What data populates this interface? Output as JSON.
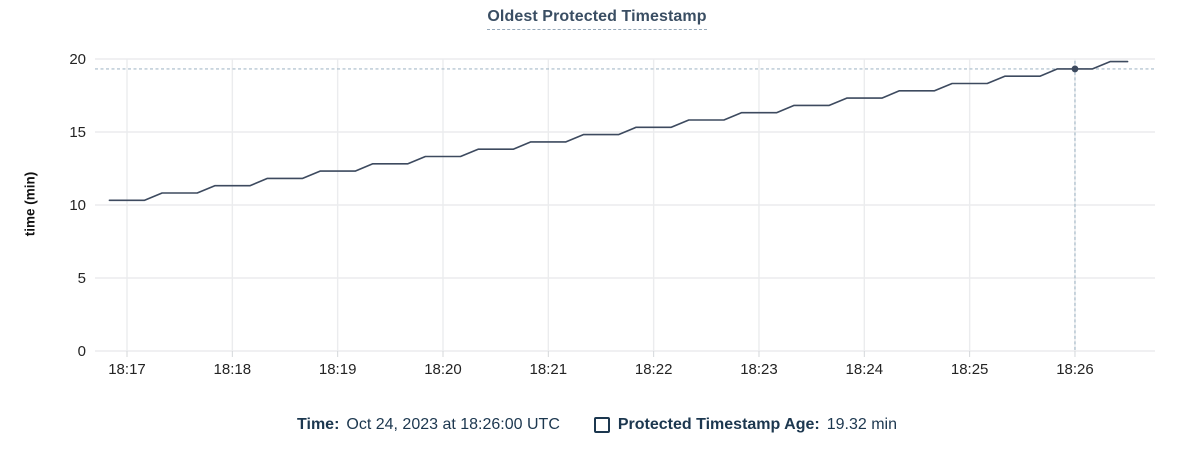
{
  "title": {
    "text": "Oldest Protected Timestamp"
  },
  "legend": {
    "time_label": "Time:",
    "time_value": "Oct 24, 2023 at 18:26:00 UTC",
    "series_label": "Protected Timestamp Age:",
    "series_value": "19.32 min"
  },
  "colors": {
    "title": "#3a4e63",
    "line": "#3d4a5f",
    "dot": "#3d4a5f",
    "crosshair": "#a7bbc9",
    "gridline": "#ebecee",
    "axis_tick_mark": "#d4d7da",
    "tick_label": "#242424",
    "legend_text": "#1c374f"
  },
  "chart_data": {
    "type": "line",
    "title": "Oldest Protected Timestamp",
    "xlabel": "",
    "ylabel": "time (min)",
    "ylim": [
      0,
      20
    ],
    "yticks": [
      0,
      5,
      10,
      15,
      20
    ],
    "xticks": {
      "seconds_from_first_tick": [
        0,
        60,
        120,
        180,
        240,
        300,
        360,
        420,
        480,
        540
      ],
      "labels": [
        "18:17",
        "18:18",
        "18:19",
        "18:20",
        "18:21",
        "18:22",
        "18:23",
        "18:24",
        "18:25",
        "18:26"
      ]
    },
    "grid": true,
    "legend_position": "bottom",
    "series": [
      {
        "name": "Protected Timestamp Age",
        "unit": "min",
        "points_seconds_value": [
          [
            -10,
            10.32
          ],
          [
            0,
            10.32
          ],
          [
            10,
            10.32
          ],
          [
            20,
            10.82
          ],
          [
            30,
            10.82
          ],
          [
            40,
            10.82
          ],
          [
            50,
            11.32
          ],
          [
            60,
            11.32
          ],
          [
            70,
            11.32
          ],
          [
            80,
            11.82
          ],
          [
            90,
            11.82
          ],
          [
            100,
            11.82
          ],
          [
            110,
            12.32
          ],
          [
            120,
            12.32
          ],
          [
            130,
            12.32
          ],
          [
            140,
            12.82
          ],
          [
            150,
            12.82
          ],
          [
            160,
            12.82
          ],
          [
            170,
            13.32
          ],
          [
            180,
            13.32
          ],
          [
            190,
            13.32
          ],
          [
            200,
            13.82
          ],
          [
            210,
            13.82
          ],
          [
            220,
            13.82
          ],
          [
            230,
            14.32
          ],
          [
            240,
            14.32
          ],
          [
            250,
            14.32
          ],
          [
            260,
            14.82
          ],
          [
            270,
            14.82
          ],
          [
            280,
            14.82
          ],
          [
            290,
            15.32
          ],
          [
            300,
            15.32
          ],
          [
            310,
            15.32
          ],
          [
            320,
            15.82
          ],
          [
            330,
            15.82
          ],
          [
            340,
            15.82
          ],
          [
            350,
            16.32
          ],
          [
            360,
            16.32
          ],
          [
            370,
            16.32
          ],
          [
            380,
            16.82
          ],
          [
            390,
            16.82
          ],
          [
            400,
            16.82
          ],
          [
            410,
            17.32
          ],
          [
            420,
            17.32
          ],
          [
            430,
            17.32
          ],
          [
            440,
            17.82
          ],
          [
            450,
            17.82
          ],
          [
            460,
            17.82
          ],
          [
            470,
            18.32
          ],
          [
            480,
            18.32
          ],
          [
            490,
            18.32
          ],
          [
            500,
            18.82
          ],
          [
            510,
            18.82
          ],
          [
            520,
            18.82
          ],
          [
            530,
            19.32
          ],
          [
            540,
            19.32
          ],
          [
            550,
            19.32
          ],
          [
            560,
            19.82
          ],
          [
            570,
            19.82
          ]
        ]
      }
    ],
    "highlight": {
      "x_seconds": 540,
      "x_time_label": "18:26:00",
      "value": 19.32,
      "crosshair": true
    }
  }
}
